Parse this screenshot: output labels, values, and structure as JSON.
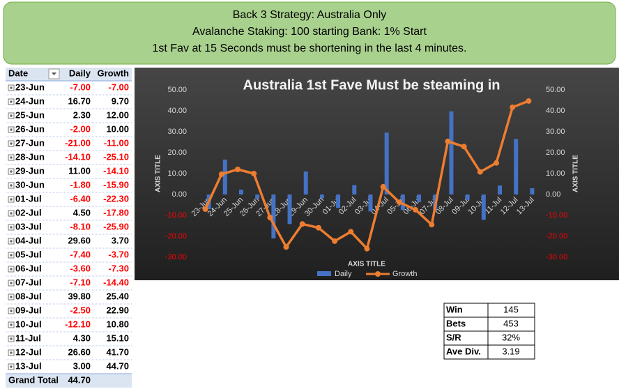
{
  "header": {
    "lines": [
      "Back 3 Strategy: Australia Only",
      "Avalanche Staking: 100 starting Bank: 1% Start",
      "1st Fav at 15 Seconds must be shortening in the last 4 minutes."
    ]
  },
  "table": {
    "headers": [
      "Date",
      "Daily",
      "Growth"
    ],
    "rows": [
      [
        "23-Jun",
        "-7.00",
        "-7.00"
      ],
      [
        "24-Jun",
        "16.70",
        "9.70"
      ],
      [
        "25-Jun",
        "2.30",
        "12.00"
      ],
      [
        "26-Jun",
        "-2.00",
        "10.00"
      ],
      [
        "27-Jun",
        "-21.00",
        "-11.00"
      ],
      [
        "28-Jun",
        "-14.10",
        "-25.10"
      ],
      [
        "29-Jun",
        "11.00",
        "-14.10"
      ],
      [
        "30-Jun",
        "-1.80",
        "-15.90"
      ],
      [
        "01-Jul",
        "-6.40",
        "-22.30"
      ],
      [
        "02-Jul",
        "4.50",
        "-17.80"
      ],
      [
        "03-Jul",
        "-8.10",
        "-25.90"
      ],
      [
        "04-Jul",
        "29.60",
        "3.70"
      ],
      [
        "05-Jul",
        "-7.40",
        "-3.70"
      ],
      [
        "06-Jul",
        "-3.60",
        "-7.30"
      ],
      [
        "07-Jul",
        "-7.10",
        "-14.40"
      ],
      [
        "08-Jul",
        "39.80",
        "25.40"
      ],
      [
        "09-Jul",
        "-2.50",
        "22.90"
      ],
      [
        "10-Jul",
        "-12.10",
        "10.80"
      ],
      [
        "11-Jul",
        "4.30",
        "15.10"
      ],
      [
        "12-Jul",
        "26.60",
        "41.70"
      ],
      [
        "13-Jul",
        "3.00",
        "44.70"
      ]
    ],
    "total": [
      "Grand Total",
      "44.70"
    ]
  },
  "stats": {
    "rows": [
      [
        "Win",
        "145"
      ],
      [
        "Bets",
        "453"
      ],
      [
        "S/R",
        "32%"
      ],
      [
        "Ave Div.",
        "3.19"
      ]
    ]
  },
  "chart_data": {
    "type": "bar-line",
    "title": "Australia 1st Fave  Must be steaming in",
    "y_title": "AXIS TITLE",
    "y2_title": "AXIS TITLE",
    "x_title": "AXIS TITLE",
    "categories": [
      "23-Jun",
      "24-Jun",
      "25-Jun",
      "26-Jun",
      "27-Jun",
      "28-Jun",
      "29-Jun",
      "30-Jun",
      "01-Jul",
      "02-Jul",
      "03-Jul",
      "04-Jul",
      "05-Jul",
      "06-Jul",
      "07-Jul",
      "08-Jul",
      "09-Jul",
      "10-Jul",
      "11-Jul",
      "12-Jul",
      "13-Jul"
    ],
    "series": [
      {
        "name": "Daily",
        "type": "bar",
        "color": "#4472c4",
        "values": [
          -7,
          16.7,
          2.3,
          -2,
          -21,
          -14.1,
          11,
          -1.8,
          -6.4,
          4.5,
          -8.1,
          29.6,
          -7.4,
          -3.6,
          -7.1,
          39.8,
          -2.5,
          -12.1,
          4.3,
          26.6,
          3
        ]
      },
      {
        "name": "Growth",
        "type": "line",
        "color": "#ed7d31",
        "axis": "y2",
        "values": [
          -7,
          9.7,
          12,
          10,
          -11,
          -25.1,
          -14.1,
          -15.9,
          -22.3,
          -17.8,
          -25.9,
          3.7,
          -3.7,
          -7.3,
          -14.4,
          25.4,
          22.9,
          10.8,
          15.1,
          41.7,
          44.7
        ]
      }
    ],
    "ylim": [
      -30,
      50
    ],
    "yticks": [
      {
        "value": 50,
        "label": "50.00"
      },
      {
        "value": 40,
        "label": "40.00"
      },
      {
        "value": 30,
        "label": "30.00"
      },
      {
        "value": 20,
        "label": "20.00"
      },
      {
        "value": 10,
        "label": "10.00"
      },
      {
        "value": 0,
        "label": "0.00"
      },
      {
        "value": -10,
        "label": "-10.00"
      },
      {
        "value": -20,
        "label": "-20.00"
      },
      {
        "value": -30,
        "label": "-30.00"
      }
    ],
    "y2lim": [
      -30,
      50
    ],
    "y2ticks": [
      {
        "value": 50,
        "label": "50.00"
      },
      {
        "value": 40,
        "label": "40.00"
      },
      {
        "value": 30,
        "label": "30.00"
      },
      {
        "value": 20,
        "label": "20.00"
      },
      {
        "value": 10,
        "label": "10.00"
      },
      {
        "value": 0,
        "label": "0.00"
      },
      {
        "value": -10,
        "label": "-10.00"
      },
      {
        "value": -20,
        "label": "-20.00"
      },
      {
        "value": -30,
        "label": "-30.00"
      }
    ]
  }
}
